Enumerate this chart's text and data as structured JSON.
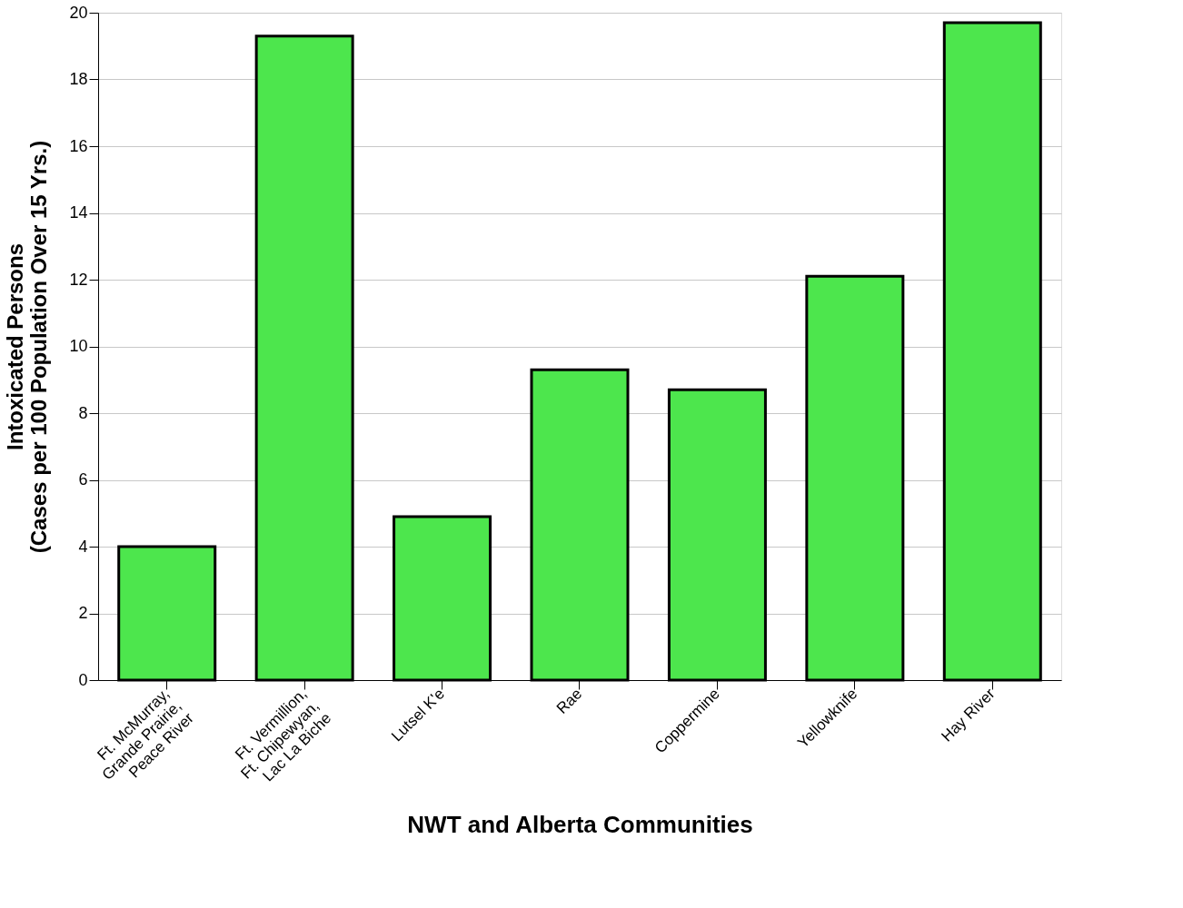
{
  "chart_data": {
    "type": "bar",
    "xlabel": "NWT and Alberta Communities",
    "ylabel": "Intoxicated Persons\n(Cases per 100 Population Over 15 Yrs.)",
    "categories": [
      "Ft. McMurray,\nGrande Prairie,\nPeace River",
      "Ft. Vermillion,\nFt. Chipewyan,\nLac La Biche",
      "Lutsel K'e",
      "Rae",
      "Coppermine",
      "Yellowknife",
      "Hay River"
    ],
    "values": [
      4.0,
      19.3,
      4.9,
      9.3,
      8.7,
      12.1,
      19.7
    ],
    "color": "#4de64d",
    "ylim": [
      0,
      20
    ],
    "yticks": [
      0,
      2,
      4,
      6,
      8,
      10,
      12,
      14,
      16,
      18,
      20
    ],
    "grid": "y"
  }
}
